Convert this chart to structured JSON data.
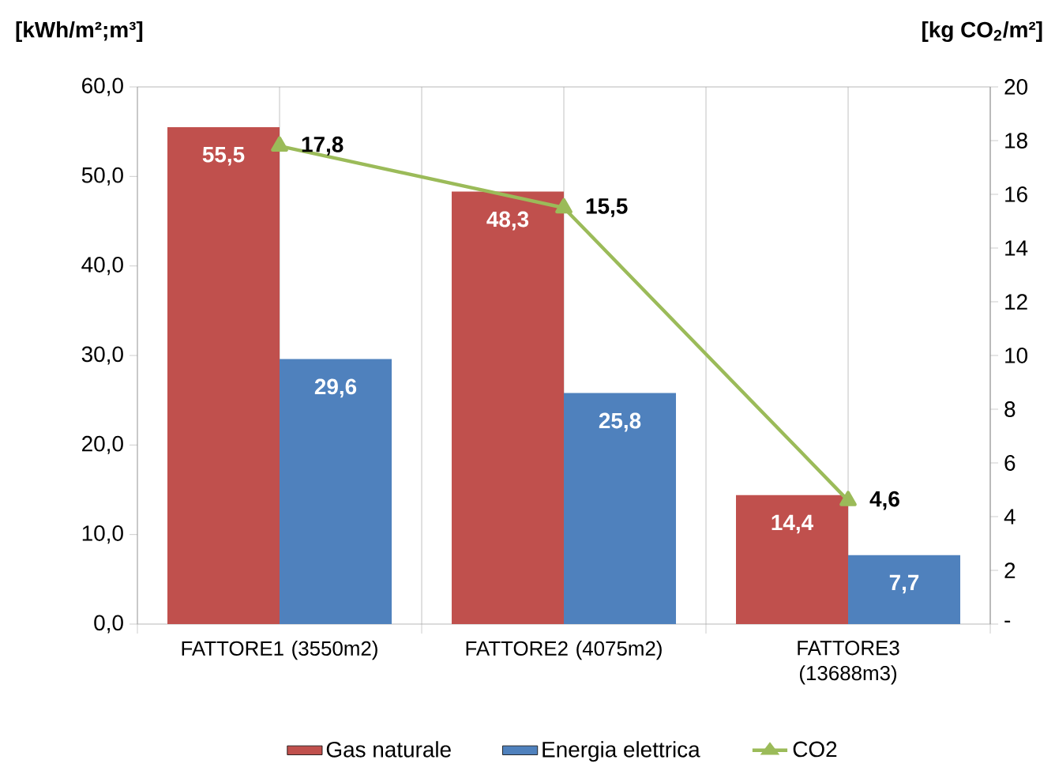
{
  "chart_data": {
    "type": "bar",
    "ylabel": "[kWh/m²;m³]",
    "y2label": "[kg CO$_{2}$/m²]",
    "categories": [
      "FATTORE1 (3550m2)",
      "FATTORE2 (4075m2)",
      "FATTORE3 (13688m3)"
    ],
    "series": [
      {
        "name": "Gas naturale",
        "color": "#c0504d",
        "values": [
          55.5,
          48.3,
          14.4
        ],
        "value_labels": [
          "55,5",
          "48,3",
          "14,4"
        ]
      },
      {
        "name": "Energia elettrica",
        "color": "#4f81bd",
        "values": [
          29.6,
          25.8,
          7.7
        ],
        "value_labels": [
          "29,6",
          "25,8",
          "7,7"
        ]
      },
      {
        "name": "CO2",
        "type": "line",
        "axis": "y2",
        "marker": "triangle",
        "color": "#9bbb59",
        "values": [
          17.8,
          15.5,
          4.6
        ],
        "value_labels": [
          "17,8",
          "15,5",
          "4,6"
        ]
      }
    ],
    "ylim": [
      0,
      60
    ],
    "yticks": [
      {
        "value": 0,
        "label": "0,0"
      },
      {
        "value": 10,
        "label": "10,0"
      },
      {
        "value": 20,
        "label": "20,0"
      },
      {
        "value": 30,
        "label": "30,0"
      },
      {
        "value": 40,
        "label": "40,0"
      },
      {
        "value": 50,
        "label": "50,0"
      },
      {
        "value": 60,
        "label": "60,0"
      }
    ],
    "y2lim": [
      0,
      20
    ],
    "y2ticks": [
      {
        "value": 0,
        "label": "-"
      },
      2,
      4,
      6,
      8,
      10,
      12,
      14,
      16,
      18,
      20
    ],
    "grid": "x",
    "legend": "bottom"
  }
}
